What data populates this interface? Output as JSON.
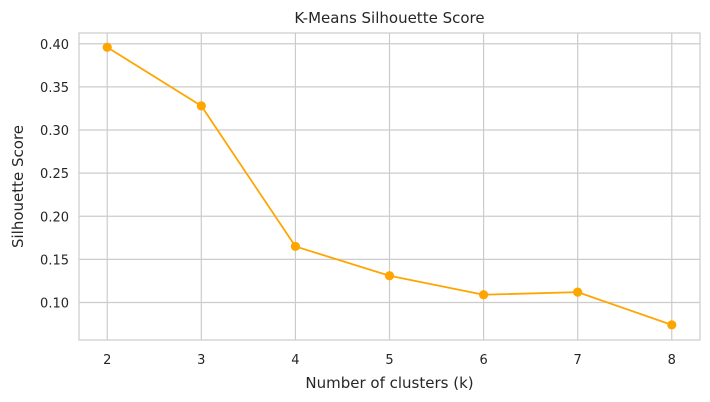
{
  "chart_data": {
    "type": "line",
    "title": "K-Means Silhouette Score",
    "xlabel": "Number of clusters (k)",
    "ylabel": "Silhouette Score",
    "x": [
      2,
      3,
      4,
      5,
      6,
      7,
      8
    ],
    "x_tick_labels": [
      "2",
      "3",
      "4",
      "5",
      "6",
      "7",
      "8"
    ],
    "y_tick_values": [
      0.1,
      0.15,
      0.2,
      0.25,
      0.3,
      0.35,
      0.4
    ],
    "y_tick_labels": [
      "0.10",
      "0.15",
      "0.20",
      "0.25",
      "0.30",
      "0.35",
      "0.40"
    ],
    "xlim": [
      1.7,
      8.3
    ],
    "ylim": [
      0.0565,
      0.4125
    ],
    "grid": true,
    "legend": false,
    "series": [
      {
        "values": [
          0.396,
          0.328,
          0.165,
          0.131,
          0.109,
          0.112,
          0.074
        ],
        "color": "#ffa500",
        "marker": "circle"
      }
    ]
  }
}
